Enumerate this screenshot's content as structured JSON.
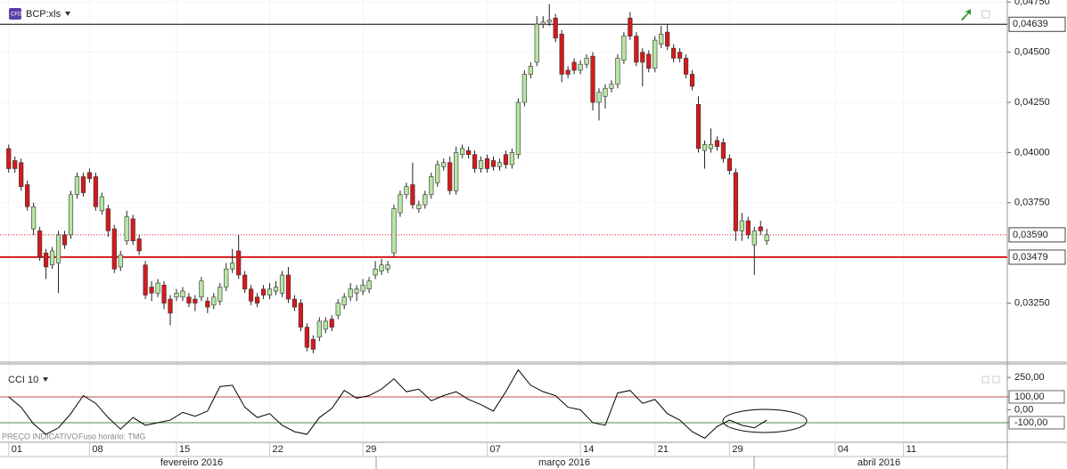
{
  "chart_data": [
    {
      "type": "candlestick",
      "title": "BCP:xls",
      "up_color": "#b8e6a2",
      "down_color": "#d7191c",
      "grid": true,
      "xlim": [
        -1.4,
        160.7
      ],
      "ylim": [
        0.0296,
        0.0476
      ],
      "yticks": [
        {
          "value": 0.0475,
          "label": "0,04750"
        },
        {
          "value": 0.045,
          "label": "0,04500"
        },
        {
          "value": 0.0425,
          "label": "0,04250"
        },
        {
          "value": 0.04,
          "label": "0,04000"
        },
        {
          "value": 0.0375,
          "label": "0,03750"
        },
        {
          "value": 0.0325,
          "label": "0,03250"
        }
      ],
      "xticks": [
        {
          "value": 0,
          "label": "01"
        },
        {
          "value": 13,
          "label": "08"
        },
        {
          "value": 27,
          "label": "15"
        },
        {
          "value": 42,
          "label": "22"
        },
        {
          "value": 57,
          "label": "29"
        },
        {
          "value": 77,
          "label": "07"
        },
        {
          "value": 92,
          "label": "14"
        },
        {
          "value": 104,
          "label": "21"
        },
        {
          "value": 116,
          "label": "29"
        },
        {
          "value": 133,
          "label": "04"
        },
        {
          "value": 144,
          "label": "11"
        }
      ],
      "months": [
        "fevereiro 2016",
        "março 2016",
        "abril 2016"
      ],
      "lines": [
        {
          "value": 0.04639,
          "label": "0,04639",
          "color": "#000000",
          "style": "solid"
        },
        {
          "value": 0.0359,
          "label": "0,03590",
          "color": "#d7191c",
          "style": "dotted"
        },
        {
          "value": 0.03479,
          "label": "0,03479",
          "color": "#d7191c",
          "style": "thick"
        }
      ],
      "ohlc": [
        [
          0.0402,
          0.0404,
          0.039,
          0.0392
        ],
        [
          0.0396,
          0.0398,
          0.039,
          0.0392
        ],
        [
          0.0395,
          0.0397,
          0.0381,
          0.0383
        ],
        [
          0.0384,
          0.0386,
          0.0371,
          0.0373
        ],
        [
          0.0362,
          0.0375,
          0.0359,
          0.0373
        ],
        [
          0.0361,
          0.0363,
          0.0346,
          0.0348
        ],
        [
          0.035,
          0.0352,
          0.0337,
          0.0343
        ],
        [
          0.0344,
          0.0353,
          0.0342,
          0.0351
        ],
        [
          0.0345,
          0.0361,
          0.033,
          0.0359
        ],
        [
          0.0359,
          0.0361,
          0.0352,
          0.0354
        ],
        [
          0.0359,
          0.0381,
          0.0357,
          0.0379
        ],
        [
          0.0379,
          0.039,
          0.0377,
          0.0388
        ],
        [
          0.0388,
          0.039,
          0.0378,
          0.038
        ],
        [
          0.039,
          0.0392,
          0.0385,
          0.0387
        ],
        [
          0.0388,
          0.039,
          0.0371,
          0.0373
        ],
        [
          0.0371,
          0.038,
          0.0369,
          0.0378
        ],
        [
          0.0372,
          0.0374,
          0.0358,
          0.0361
        ],
        [
          0.0362,
          0.0364,
          0.034,
          0.0342
        ],
        [
          0.0343,
          0.0351,
          0.0341,
          0.0349
        ],
        [
          0.0356,
          0.0371,
          0.0354,
          0.0368
        ],
        [
          0.0367,
          0.0369,
          0.0354,
          0.0356
        ],
        [
          0.0357,
          0.0359,
          0.0349,
          0.0351
        ],
        [
          0.0344,
          0.0346,
          0.0327,
          0.0329
        ],
        [
          0.0333,
          0.0336,
          0.0326,
          0.033
        ],
        [
          0.033,
          0.0337,
          0.0328,
          0.0335
        ],
        [
          0.0334,
          0.0336,
          0.0322,
          0.0325
        ],
        [
          0.0327,
          0.0329,
          0.0314,
          0.032
        ],
        [
          0.0328,
          0.0332,
          0.0326,
          0.033
        ],
        [
          0.0328,
          0.0333,
          0.0326,
          0.0331
        ],
        [
          0.0328,
          0.033,
          0.0323,
          0.0325
        ],
        [
          0.0327,
          0.0329,
          0.0321,
          0.0325
        ],
        [
          0.0328,
          0.0338,
          0.0326,
          0.0336
        ],
        [
          0.0326,
          0.0328,
          0.032,
          0.0323
        ],
        [
          0.0324,
          0.033,
          0.0322,
          0.0328
        ],
        [
          0.0326,
          0.0335,
          0.0324,
          0.0333
        ],
        [
          0.0333,
          0.0345,
          0.0331,
          0.0342
        ],
        [
          0.0342,
          0.0352,
          0.034,
          0.0345
        ],
        [
          0.0351,
          0.0359,
          0.0337,
          0.0339
        ],
        [
          0.0339,
          0.0341,
          0.033,
          0.0332
        ],
        [
          0.0332,
          0.0334,
          0.0324,
          0.0326
        ],
        [
          0.0328,
          0.033,
          0.0323,
          0.0325
        ],
        [
          0.0332,
          0.0334,
          0.0327,
          0.0329
        ],
        [
          0.0329,
          0.0335,
          0.0327,
          0.0332
        ],
        [
          0.0331,
          0.0336,
          0.0329,
          0.0333
        ],
        [
          0.033,
          0.0341,
          0.0328,
          0.0339
        ],
        [
          0.0339,
          0.0343,
          0.0325,
          0.0327
        ],
        [
          0.0327,
          0.0329,
          0.0321,
          0.0323
        ],
        [
          0.0325,
          0.0327,
          0.0311,
          0.0313
        ],
        [
          0.0313,
          0.0315,
          0.0301,
          0.0303
        ],
        [
          0.0307,
          0.0309,
          0.03,
          0.0302
        ],
        [
          0.0308,
          0.0318,
          0.0306,
          0.0316
        ],
        [
          0.0312,
          0.0318,
          0.031,
          0.0316
        ],
        [
          0.0317,
          0.0319,
          0.0311,
          0.0313
        ],
        [
          0.0319,
          0.0327,
          0.0317,
          0.0325
        ],
        [
          0.0324,
          0.033,
          0.0322,
          0.0328
        ],
        [
          0.0328,
          0.0335,
          0.0326,
          0.0332
        ],
        [
          0.033,
          0.0334,
          0.0326,
          0.0332
        ],
        [
          0.0331,
          0.0337,
          0.0329,
          0.0334
        ],
        [
          0.0332,
          0.0338,
          0.033,
          0.0336
        ],
        [
          0.0339,
          0.0346,
          0.0337,
          0.0342
        ],
        [
          0.0341,
          0.0347,
          0.0339,
          0.0344
        ],
        [
          0.0342,
          0.0346,
          0.034,
          0.0344
        ],
        [
          0.035,
          0.0374,
          0.0348,
          0.0372
        ],
        [
          0.037,
          0.0381,
          0.0368,
          0.0379
        ],
        [
          0.0379,
          0.0385,
          0.0377,
          0.0383
        ],
        [
          0.0384,
          0.0395,
          0.0372,
          0.0374
        ],
        [
          0.0372,
          0.0376,
          0.037,
          0.0374
        ],
        [
          0.0374,
          0.0381,
          0.0372,
          0.0379
        ],
        [
          0.0379,
          0.039,
          0.0377,
          0.0388
        ],
        [
          0.0385,
          0.0396,
          0.0383,
          0.0394
        ],
        [
          0.0393,
          0.0397,
          0.0391,
          0.0395
        ],
        [
          0.0395,
          0.0398,
          0.0379,
          0.0381
        ],
        [
          0.0381,
          0.0403,
          0.0379,
          0.04
        ],
        [
          0.0399,
          0.0404,
          0.0397,
          0.0402
        ],
        [
          0.0401,
          0.0403,
          0.0397,
          0.0399
        ],
        [
          0.0399,
          0.0401,
          0.039,
          0.0392
        ],
        [
          0.0392,
          0.0398,
          0.039,
          0.0396
        ],
        [
          0.0397,
          0.0399,
          0.039,
          0.0392
        ],
        [
          0.0396,
          0.0398,
          0.0391,
          0.0393
        ],
        [
          0.0393,
          0.0397,
          0.0391,
          0.0395
        ],
        [
          0.0399,
          0.0401,
          0.0392,
          0.0394
        ],
        [
          0.0394,
          0.0402,
          0.0392,
          0.04
        ],
        [
          0.0399,
          0.0427,
          0.0397,
          0.0425
        ],
        [
          0.0425,
          0.0441,
          0.0423,
          0.0439
        ],
        [
          0.0439,
          0.0445,
          0.0437,
          0.0443
        ],
        [
          0.0445,
          0.0468,
          0.0443,
          0.0464
        ],
        [
          0.0464,
          0.0468,
          0.0462,
          0.0465
        ],
        [
          0.0465,
          0.0474,
          0.0463,
          0.0466
        ],
        [
          0.0467,
          0.0469,
          0.0455,
          0.0457
        ],
        [
          0.0459,
          0.0461,
          0.0435,
          0.0439
        ],
        [
          0.0441,
          0.0443,
          0.0437,
          0.0439
        ],
        [
          0.0445,
          0.0447,
          0.0439,
          0.0441
        ],
        [
          0.0441,
          0.0446,
          0.0439,
          0.0444
        ],
        [
          0.0444,
          0.0449,
          0.0442,
          0.0447
        ],
        [
          0.0448,
          0.045,
          0.0421,
          0.0425
        ],
        [
          0.0425,
          0.0432,
          0.0416,
          0.043
        ],
        [
          0.0428,
          0.0434,
          0.0422,
          0.0432
        ],
        [
          0.0432,
          0.0436,
          0.043,
          0.0434
        ],
        [
          0.0434,
          0.0449,
          0.0432,
          0.0447
        ],
        [
          0.0446,
          0.046,
          0.0444,
          0.0458
        ],
        [
          0.0467,
          0.047,
          0.0456,
          0.0458
        ],
        [
          0.0458,
          0.046,
          0.0443,
          0.0445
        ],
        [
          0.045,
          0.0452,
          0.0433,
          0.0445
        ],
        [
          0.0449,
          0.0451,
          0.044,
          0.0442
        ],
        [
          0.0442,
          0.0458,
          0.044,
          0.0456
        ],
        [
          0.0454,
          0.0463,
          0.0452,
          0.0459
        ],
        [
          0.046,
          0.0464,
          0.0451,
          0.0453
        ],
        [
          0.0452,
          0.0454,
          0.0445,
          0.0447
        ],
        [
          0.045,
          0.0452,
          0.0445,
          0.0447
        ],
        [
          0.0447,
          0.0449,
          0.0437,
          0.0439
        ],
        [
          0.0439,
          0.0441,
          0.0431,
          0.0433
        ],
        [
          0.0424,
          0.0428,
          0.04,
          0.0402
        ],
        [
          0.0401,
          0.0406,
          0.0392,
          0.0404
        ],
        [
          0.0402,
          0.0412,
          0.04,
          0.0404
        ],
        [
          0.0406,
          0.0408,
          0.0401,
          0.0403
        ],
        [
          0.0405,
          0.0407,
          0.0395,
          0.0397
        ],
        [
          0.0397,
          0.0399,
          0.0389,
          0.0391
        ],
        [
          0.039,
          0.0392,
          0.0356,
          0.0361
        ],
        [
          0.0361,
          0.037,
          0.0356,
          0.0366
        ],
        [
          0.0366,
          0.0368,
          0.0357,
          0.0359
        ],
        [
          0.0354,
          0.0363,
          0.0339,
          0.0361
        ],
        [
          0.0363,
          0.0366,
          0.0359,
          0.0361
        ],
        [
          0.0356,
          0.0362,
          0.0354,
          0.0359
        ]
      ]
    },
    {
      "type": "line",
      "title": "CCI 10",
      "color": "#000000",
      "grid": true,
      "notes": [
        "PREÇO INDICATIVO",
        "Fuso horário: TMG"
      ],
      "xlim": [
        -1.4,
        160.7
      ],
      "ylim": [
        -252,
        348
      ],
      "yticks": [
        {
          "value": 250,
          "label": "250,00"
        },
        {
          "value": 100,
          "label": "100,00"
        },
        {
          "value": 0,
          "label": "0,00"
        },
        {
          "value": -100,
          "label": "-100,00"
        }
      ],
      "reference_lines": [
        {
          "value": 100,
          "color": "#c0504d"
        },
        {
          "value": -100,
          "color": "#4f8a4f"
        }
      ],
      "x": [
        0,
        2,
        4,
        6,
        8,
        10,
        12,
        14,
        16,
        18,
        20,
        22,
        24,
        26,
        28,
        30,
        32,
        34,
        36,
        38,
        40,
        42,
        44,
        46,
        48,
        50,
        52,
        54,
        56,
        58,
        60,
        62,
        64,
        66,
        68,
        70,
        72,
        74,
        76,
        78,
        80,
        82,
        84,
        86,
        88,
        90,
        92,
        94,
        96,
        98,
        100,
        102,
        104,
        106,
        108,
        110,
        112,
        114,
        116,
        118,
        120,
        122
      ],
      "values": [
        100,
        20,
        -110,
        -190,
        -140,
        -30,
        110,
        50,
        -60,
        -150,
        -60,
        -120,
        -100,
        -80,
        -20,
        -50,
        -10,
        180,
        190,
        20,
        -60,
        -30,
        -120,
        -170,
        -190,
        -60,
        10,
        150,
        90,
        110,
        160,
        240,
        140,
        160,
        70,
        110,
        140,
        80,
        40,
        -10,
        140,
        310,
        190,
        140,
        110,
        20,
        0,
        -100,
        -120,
        130,
        150,
        50,
        80,
        -30,
        -80,
        -170,
        -220,
        -130,
        -80,
        -120,
        -140,
        -80
      ]
    }
  ]
}
